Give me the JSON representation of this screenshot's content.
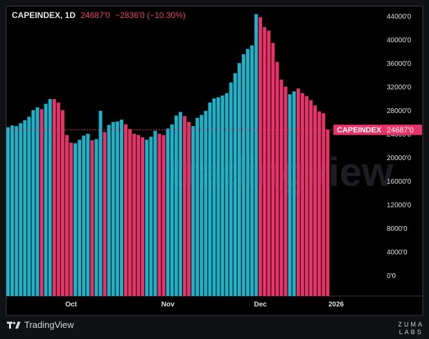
{
  "header": {
    "symbol": "CAPEINDEX, 1D",
    "value": "24687'0",
    "change": "−2836'0 (−10.30%)"
  },
  "price_label": {
    "name": "CAPEINDEX",
    "value": "24687'0"
  },
  "footer": {
    "brand": "TradingView",
    "credit_line1": "ZUMA",
    "credit_line2": "LABS"
  },
  "colors": {
    "up": "#1fb1c8",
    "down": "#e8336a",
    "background": "#101113"
  },
  "chart_data": {
    "type": "bar",
    "title": "CAPEINDEX, 1D",
    "ylim": [
      -3000,
      45000
    ],
    "y_ticks": [
      0,
      4000,
      8000,
      12000,
      16000,
      20000,
      24000,
      28000,
      32000,
      36000,
      40000,
      44000
    ],
    "y_tick_labels": [
      "0'0",
      "4000'0",
      "8000'0",
      "12000'0",
      "16000'0",
      "20000'0",
      "24000'0",
      "28000'0",
      "32000'0",
      "36000'0",
      "40000'0",
      "44000'0"
    ],
    "x_tick_labels": [
      {
        "label": "Oct",
        "index": 15
      },
      {
        "label": "Nov",
        "index": 38
      },
      {
        "label": "Dec",
        "index": 60
      },
      {
        "label": "2026",
        "index": 78
      }
    ],
    "last_value": 24687,
    "series": [
      {
        "name": "CAPEINDEX",
        "values": [
          25100,
          25400,
          25300,
          25800,
          26300,
          26900,
          28000,
          28500,
          28200,
          29100,
          29900,
          29900,
          29300,
          28000,
          23800,
          22500,
          22400,
          23000,
          23700,
          24000,
          22900,
          23100,
          27900,
          24300,
          25500,
          26000,
          26100,
          26400,
          25600,
          24800,
          24000,
          23800,
          23400,
          23000,
          23500,
          24500,
          24000,
          23800,
          24900,
          25600,
          27100,
          27700,
          27000,
          26000,
          25300,
          26700,
          27200,
          27900,
          29300,
          30000,
          30200,
          30500,
          30900,
          32700,
          34300,
          36000,
          37500,
          38400,
          39000,
          44300,
          43800,
          42100,
          41500,
          39400,
          36200,
          33200,
          32000,
          30700,
          31200,
          31700,
          30900,
          30400,
          29700,
          28800,
          27800,
          27500,
          24700
        ]
      }
    ],
    "directions": [
      "up",
      "up",
      "up",
      "up",
      "up",
      "up",
      "up",
      "up",
      "down",
      "up",
      "up",
      "down",
      "down",
      "down",
      "down",
      "down",
      "up",
      "up",
      "up",
      "up",
      "down",
      "up",
      "up",
      "down",
      "up",
      "up",
      "up",
      "up",
      "down",
      "down",
      "down",
      "down",
      "down",
      "up",
      "up",
      "up",
      "down",
      "down",
      "up",
      "up",
      "up",
      "up",
      "down",
      "down",
      "up",
      "up",
      "up",
      "up",
      "up",
      "up",
      "up",
      "up",
      "up",
      "up",
      "up",
      "up",
      "up",
      "up",
      "up",
      "up",
      "down",
      "down",
      "down",
      "down",
      "down",
      "down",
      "down",
      "up",
      "up",
      "down",
      "down",
      "down",
      "down",
      "down",
      "down",
      "down",
      "down"
    ]
  }
}
